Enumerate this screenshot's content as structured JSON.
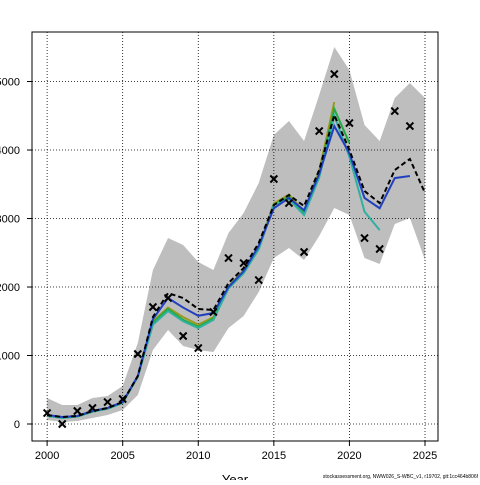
{
  "chart_data": {
    "type": "line",
    "x_label": "Year",
    "footer": "stockassessment.org, NWW026_S-WBC_v1, r19702, git:1cc464b806f",
    "x": [
      2000,
      2001,
      2002,
      2003,
      2004,
      2005,
      2006,
      2007,
      2008,
      2009,
      2010,
      2011,
      2012,
      2013,
      2014,
      2015,
      2016,
      2017,
      2018,
      2019,
      2020,
      2021,
      2022,
      2023,
      2024,
      2025
    ],
    "xlim": [
      1999,
      2025.86
    ],
    "xticks": [
      2000,
      2005,
      2010,
      2015,
      2020,
      2025
    ],
    "ylim": [
      -248,
      5723
    ],
    "yticks": [
      0,
      1000,
      2000,
      3000,
      4000,
      5000
    ],
    "grid": true,
    "band": {
      "color": "#bebebe",
      "upper": [
        380,
        277,
        277,
        380,
        409,
        555,
        1182,
        2248,
        2715,
        2613,
        2365,
        2248,
        2788,
        3080,
        3518,
        4219,
        4423,
        4131,
        4803,
        5504,
        5168,
        4365,
        4131,
        4759,
        4978,
        4759
      ],
      "lower": [
        58,
        29,
        44,
        88,
        131,
        204,
        423,
        1080,
        1372,
        1139,
        1080,
        1051,
        1401,
        1577,
        1927,
        2423,
        2569,
        2394,
        2745,
        3153,
        3051,
        2423,
        2336,
        2920,
        3007,
        2394
      ]
    },
    "series": [
      {
        "color": "#9a9a20",
        "values": [
          120,
          90,
          110,
          180,
          225,
          310,
          690,
          1500,
          1700,
          1560,
          1450,
          1560,
          2010,
          2240,
          2580,
          3220,
          3350,
          3100,
          3700,
          4700,
          null,
          null,
          null,
          null,
          null,
          null
        ]
      },
      {
        "color": "#22aa44",
        "values": [
          120,
          90,
          110,
          180,
          225,
          310,
          690,
          1480,
          1680,
          1520,
          1420,
          1540,
          1990,
          2220,
          2560,
          3200,
          3320,
          3070,
          3650,
          4600,
          4100,
          null,
          null,
          null,
          null,
          null
        ]
      },
      {
        "color": "#30b0a0",
        "values": [
          120,
          90,
          110,
          180,
          225,
          310,
          690,
          1450,
          1650,
          1500,
          1400,
          1520,
          1980,
          2200,
          2550,
          3200,
          3280,
          3050,
          3600,
          4500,
          3900,
          3100,
          2830,
          null,
          null,
          null
        ]
      },
      {
        "color": "#2040c0",
        "values": [
          131,
          102,
          117,
          190,
          234,
          321,
          701,
          1530,
          1840,
          1700,
          1580,
          1620,
          2000,
          2230,
          2600,
          3150,
          3300,
          3120,
          3650,
          4350,
          3950,
          3300,
          3150,
          3590,
          3620,
          null
        ]
      },
      {
        "color": "#000000",
        "dashed": true,
        "values": [
          131,
          102,
          117,
          190,
          234,
          321,
          701,
          1562,
          1912,
          1839,
          1679,
          1664,
          2058,
          2277,
          2642,
          3197,
          3343,
          3182,
          3708,
          4511,
          4000,
          3401,
          3226,
          3708,
          3869,
          3372
        ]
      }
    ],
    "observations": {
      "x": [
        2000,
        2001,
        2002,
        2003,
        2004,
        2005,
        2006,
        2007,
        2008,
        2009,
        2010,
        2011,
        2012,
        2013,
        2014,
        2015,
        2016,
        2017,
        2018,
        2019,
        2020,
        2021,
        2022,
        2023,
        2024
      ],
      "values": [
        160,
        0,
        190,
        234,
        321,
        365,
        1022,
        1708,
        1839,
        1285,
        1109,
        1635,
        2423,
        2350,
        2102,
        3577,
        3226,
        2511,
        4277,
        5109,
        4394,
        2715,
        2555,
        4569,
        4350
      ]
    }
  }
}
